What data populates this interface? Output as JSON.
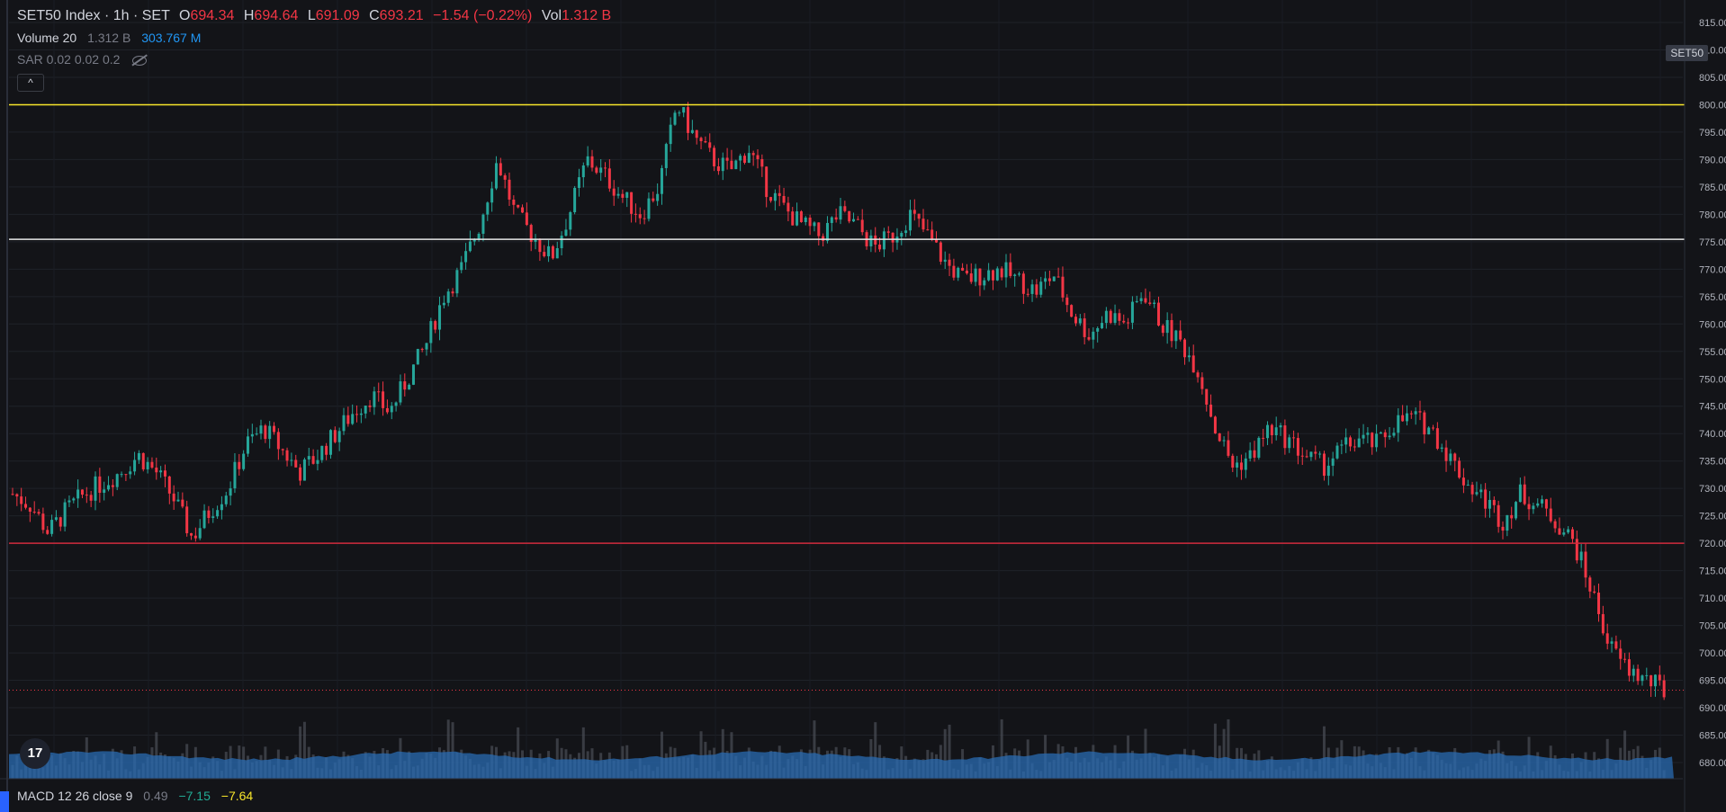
{
  "header": {
    "symbol": "SET50 Index · 1h · SET",
    "o_label": "O",
    "o_value": "694.34",
    "h_label": "H",
    "h_value": "694.64",
    "l_label": "L",
    "l_value": "691.09",
    "c_label": "C",
    "c_value": "693.21",
    "change": "−1.54 (−0.22%)",
    "vol_label": "Vol",
    "vol_value": "1.312 B"
  },
  "volume_legend": {
    "name": "Volume 20",
    "value1": "1.312 B",
    "value2": "303.767 M"
  },
  "sar_legend": {
    "text": "SAR 0.02 0.02 0.2"
  },
  "collapse_button": "^",
  "symbol_tag": "SET50",
  "logo_text": "17",
  "macd_legend": {
    "name": "MACD 12 26 close 9",
    "v1": "0.49",
    "v2": "−7.15",
    "v3": "−7.64"
  },
  "colors": {
    "up": "#26a69a",
    "down": "#f23645",
    "volume": "#2a6bb1",
    "yellow_line": "#f7e52b",
    "white_line": "#e6e6e6",
    "red_line": "#d12b3d"
  },
  "chart_data": {
    "type": "candlestick",
    "title": "SET50 Index · 1h · SET",
    "y_axis": {
      "min": 677,
      "max": 817,
      "ticks": [
        680,
        685,
        690,
        695,
        700,
        705,
        710,
        715,
        720,
        725,
        730,
        735,
        740,
        745,
        750,
        755,
        760,
        765,
        770,
        775,
        780,
        785,
        790,
        795,
        800,
        805,
        810,
        815
      ],
      "position": "right"
    },
    "horizontal_lines": [
      {
        "value": 800.0,
        "label": "800.00",
        "color": "#f7e52b"
      },
      {
        "value": 775.45,
        "label": "775.45",
        "color": "#e6e6e6"
      },
      {
        "value": 720.0,
        "label": "720.00",
        "color": "#d12b3d"
      }
    ],
    "last_price": {
      "value": 693.21,
      "label": "693.21"
    },
    "close_path": [
      729,
      727,
      722,
      726,
      729,
      731,
      733,
      736,
      733,
      728,
      721,
      726,
      730,
      738,
      741,
      737,
      733,
      736,
      740,
      744,
      747,
      744,
      750,
      756,
      765,
      770,
      778,
      790,
      780,
      776,
      772,
      780,
      790,
      787,
      783,
      780,
      785,
      800,
      794,
      790,
      788,
      792,
      785,
      781,
      778,
      776,
      780,
      778,
      774,
      776,
      780,
      776,
      771,
      768,
      769,
      770,
      768,
      766,
      769,
      762,
      758,
      762,
      760,
      766,
      760,
      757,
      752,
      741,
      734,
      736,
      741,
      739,
      736,
      734,
      737,
      739,
      738,
      742,
      743,
      741,
      736,
      731,
      728,
      724,
      729,
      727,
      724,
      720,
      711,
      701,
      697,
      695,
      693.21
    ],
    "volume_baseline_values": "moving average band"
  }
}
